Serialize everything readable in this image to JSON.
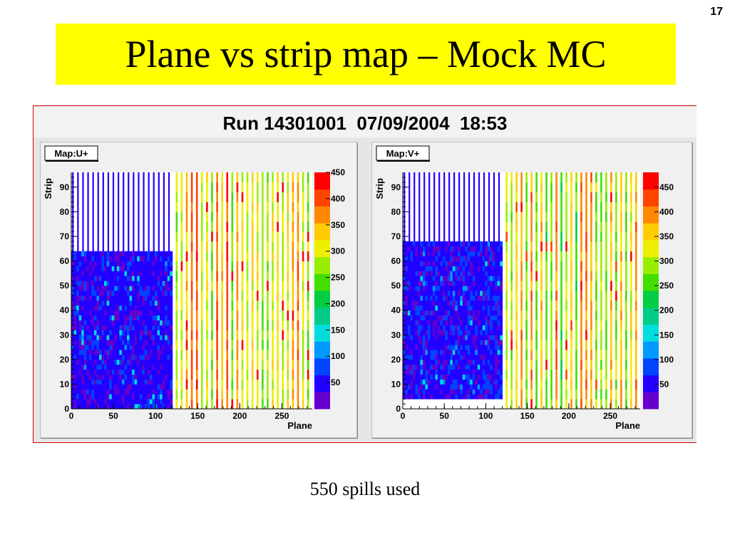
{
  "slide": {
    "number": "17",
    "title": "Plane vs strip map – Mock MC",
    "caption": "550 spills used"
  },
  "canvas": {
    "title": "Run 14301001  07/09/2004  18:53"
  },
  "colors": {
    "title_bg": "#ffff00",
    "frame_border": "#cc0000",
    "empty_cells": "#ffffff"
  },
  "chart_data": [
    {
      "type": "heatmap",
      "title": "Map:U+",
      "xlabel": "Plane",
      "ylabel": "Strip",
      "xlim": [
        0,
        286
      ],
      "ylim": [
        0,
        96
      ],
      "xticks": [
        0,
        50,
        100,
        150,
        200,
        250
      ],
      "yticks": [
        0,
        10,
        20,
        30,
        40,
        50,
        60,
        70,
        80,
        90
      ],
      "zlim": [
        0,
        450
      ],
      "zticks": [
        50,
        100,
        150,
        200,
        250,
        300,
        350,
        400,
        450
      ],
      "palette": [
        "#6600cc",
        "#2200ff",
        "#0044ff",
        "#0099ff",
        "#00dddd",
        "#00cc88",
        "#00cc44",
        "#44dd00",
        "#99ee00",
        "#eeee00",
        "#ffcc00",
        "#ff8800",
        "#ff4400",
        "#ff0000"
      ],
      "regions": [
        {
          "x": [
            0,
            120
          ],
          "y": [
            0,
            64
          ],
          "z_typical": 45,
          "note": "low-count block"
        },
        {
          "x": [
            0,
            120
          ],
          "y": [
            64,
            96
          ],
          "pattern": "every other plane",
          "z_typical": 25
        },
        {
          "x": [
            120,
            286
          ],
          "y": [
            0,
            96
          ],
          "pattern": "every other plane",
          "z_typical": 330
        }
      ]
    },
    {
      "type": "heatmap",
      "title": "Map:V+",
      "xlabel": "Plane",
      "ylabel": "Strip",
      "xlim": [
        0,
        286
      ],
      "ylim": [
        0,
        96
      ],
      "xticks": [
        0,
        50,
        100,
        150,
        200,
        250
      ],
      "yticks": [
        0,
        10,
        20,
        30,
        40,
        50,
        60,
        70,
        80,
        90
      ],
      "zlim": [
        0,
        480
      ],
      "zticks": [
        50,
        100,
        150,
        200,
        250,
        300,
        350,
        400,
        450
      ],
      "palette": [
        "#6600cc",
        "#2200ff",
        "#0044ff",
        "#0099ff",
        "#00dddd",
        "#00cc88",
        "#00cc44",
        "#44dd00",
        "#99ee00",
        "#eeee00",
        "#ffcc00",
        "#ff8800",
        "#ff4400",
        "#ff0000"
      ],
      "regions": [
        {
          "x": [
            0,
            120
          ],
          "y": [
            4,
            68
          ],
          "z_typical": 50,
          "note": "low-count block"
        },
        {
          "x": [
            0,
            120
          ],
          "y": [
            68,
            96
          ],
          "pattern": "every other plane",
          "z_typical": 25
        },
        {
          "x": [
            120,
            286
          ],
          "y": [
            0,
            96
          ],
          "pattern": "every other plane",
          "z_typical": 330
        }
      ]
    }
  ]
}
